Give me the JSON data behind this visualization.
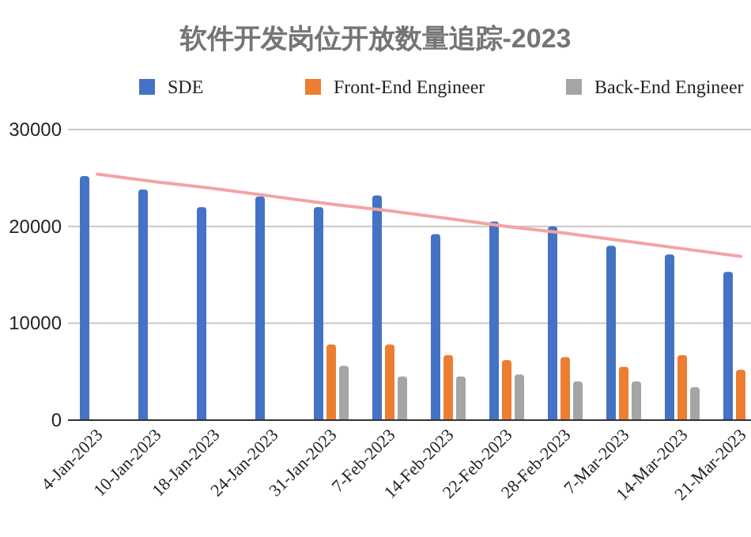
{
  "chart_data": {
    "type": "bar",
    "title": "软件开发岗位开放数量追踪-2023",
    "categories": [
      "4-Jan-2023",
      "10-Jan-2023",
      "18-Jan-2023",
      "24-Jan-2023",
      "31-Jan-2023",
      "7-Feb-2023",
      "14-Feb-2023",
      "22-Feb-2023",
      "28-Feb-2023",
      "7-Mar-2023",
      "14-Mar-2023",
      "21-Mar-2023"
    ],
    "series": [
      {
        "name": "SDE",
        "color": "#4472c4",
        "values": [
          25200,
          23800,
          22000,
          23100,
          22000,
          23200,
          19200,
          20500,
          20000,
          18000,
          17100,
          15300
        ]
      },
      {
        "name": "Front-End Engineer",
        "color": "#ed7d31",
        "values": [
          null,
          null,
          null,
          null,
          7800,
          7800,
          6700,
          6200,
          6500,
          5500,
          6700,
          5200
        ]
      },
      {
        "name": "Back-End Engineer",
        "color": "#a5a5a5",
        "values": [
          null,
          null,
          null,
          null,
          5600,
          4500,
          4500,
          4700,
          4000,
          4000,
          3400,
          null
        ]
      },
      {
        "type": "line",
        "color": "#f4a3a3",
        "values": [
          25400,
          24600,
          23900,
          23100,
          22300,
          21600,
          20800,
          20000,
          19300,
          18500,
          17700,
          16900
        ]
      }
    ],
    "ylim": [
      0,
      30000
    ],
    "yticks": [
      0,
      10000,
      20000,
      30000
    ],
    "grid": "y",
    "legend": "top"
  }
}
